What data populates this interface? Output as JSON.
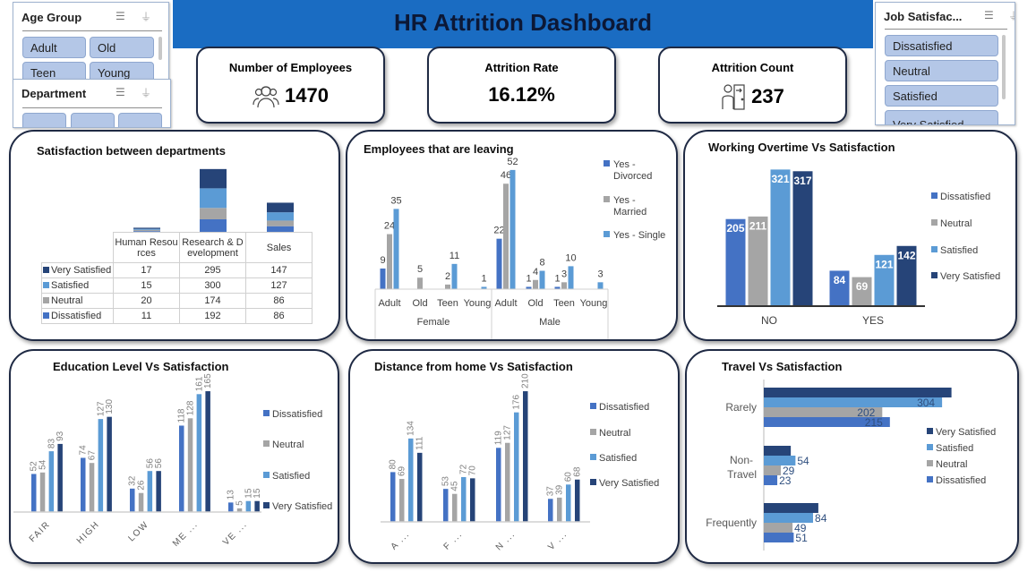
{
  "header": {
    "title": "HR Attrition Dashboard"
  },
  "slicers": {
    "age_group": {
      "title": "Age Group",
      "items": [
        "Adult",
        "Old",
        "Teen",
        "Young"
      ]
    },
    "department": {
      "title": "Department"
    },
    "job_satisfaction": {
      "title": "Job Satisfac...",
      "items": [
        "Dissatisfied",
        "Neutral",
        "Satisfied",
        "Very Satisfied"
      ]
    }
  },
  "kpis": [
    {
      "label": "Number of Employees",
      "value": "1470",
      "icon": "employees-group-icon"
    },
    {
      "label": "Attrition Rate",
      "value": "16.12%"
    },
    {
      "label": "Attrition Count",
      "value": "237",
      "icon": "person-leaving-door-icon"
    }
  ],
  "colors": {
    "dissatisfied": "#4472c4",
    "neutral": "#a5a5a5",
    "satisfied": "#5b9bd5",
    "very_satisfied": "#264478",
    "banner": "#1a6cc2"
  },
  "chart_data": [
    {
      "type": "bar",
      "stacked": true,
      "title": "Satisfaction between departments",
      "categories": [
        "Human Resources",
        "Research & Development",
        "Sales"
      ],
      "series": [
        {
          "name": "Very Satisfied",
          "values": [
            17,
            295,
            147
          ]
        },
        {
          "name": "Satisfied",
          "values": [
            15,
            300,
            127
          ]
        },
        {
          "name": "Neutral",
          "values": [
            20,
            174,
            86
          ]
        },
        {
          "name": "Dissatisfied",
          "values": [
            11,
            192,
            86
          ]
        }
      ],
      "data_table": true
    },
    {
      "type": "bar",
      "title": "Employees that are leaving",
      "groups": [
        {
          "name": "Female",
          "categories": [
            "Adult",
            "Old",
            "Teen",
            "Young"
          ]
        },
        {
          "name": "Male",
          "categories": [
            "Adult",
            "Old",
            "Teen",
            "Young"
          ]
        }
      ],
      "series": [
        {
          "name": "Yes - Divorced",
          "values": [
            9,
            null,
            null,
            null,
            22,
            1,
            1,
            null
          ]
        },
        {
          "name": "Yes - Married",
          "values": [
            24,
            5,
            2,
            null,
            46,
            4,
            3,
            null
          ]
        },
        {
          "name": "Yes - Single",
          "values": [
            35,
            null,
            11,
            1,
            52,
            8,
            10,
            3
          ]
        }
      ],
      "legend": "right"
    },
    {
      "type": "bar",
      "title": "Working Overtime Vs Satisfaction",
      "categories": [
        "NO",
        "YES"
      ],
      "series": [
        {
          "name": "Dissatisfied",
          "values": [
            205,
            84
          ]
        },
        {
          "name": "Neutral",
          "values": [
            211,
            69
          ]
        },
        {
          "name": "Satisfied",
          "values": [
            321,
            121
          ]
        },
        {
          "name": "Very Satisfied",
          "values": [
            317,
            142
          ]
        }
      ],
      "legend": "right"
    },
    {
      "type": "bar",
      "title": "Education Level Vs Satisfaction",
      "categories": [
        "FAIR",
        "HIGH",
        "LOW",
        "ME ...",
        "VE ..."
      ],
      "series": [
        {
          "name": "Dissatisfied",
          "values": [
            52,
            74,
            32,
            118,
            13
          ]
        },
        {
          "name": "Neutral",
          "values": [
            54,
            67,
            26,
            128,
            5
          ]
        },
        {
          "name": "Satisfied",
          "values": [
            83,
            127,
            56,
            161,
            15
          ]
        },
        {
          "name": "Very Satisfied",
          "values": [
            93,
            130,
            56,
            165,
            15
          ]
        }
      ],
      "legend": "right"
    },
    {
      "type": "bar",
      "title": "Distance from home Vs Satisfaction",
      "categories": [
        "A ...",
        "F ...",
        "N ...",
        "V ..."
      ],
      "series": [
        {
          "name": "Dissatisfied",
          "values": [
            80,
            53,
            119,
            37
          ]
        },
        {
          "name": "Neutral",
          "values": [
            69,
            45,
            127,
            39
          ]
        },
        {
          "name": "Satisfied",
          "values": [
            134,
            72,
            176,
            60
          ]
        },
        {
          "name": "Very Satisfied",
          "values": [
            111,
            70,
            210,
            68
          ]
        }
      ],
      "legend": "right"
    },
    {
      "type": "bar",
      "orientation": "horizontal",
      "title": "Travel Vs Satisfaction",
      "categories": [
        "Rarely",
        "Non-Travel",
        "Frequently"
      ],
      "series": [
        {
          "name": "Very Satisfied",
          "values": [
            320,
            46,
            93
          ],
          "labels_shown": false
        },
        {
          "name": "Satisfied",
          "values": [
            304,
            54,
            84
          ]
        },
        {
          "name": "Neutral",
          "values": [
            202,
            29,
            49
          ]
        },
        {
          "name": "Dissatisfied",
          "values": [
            215,
            23,
            51
          ]
        }
      ],
      "legend": "right"
    }
  ]
}
